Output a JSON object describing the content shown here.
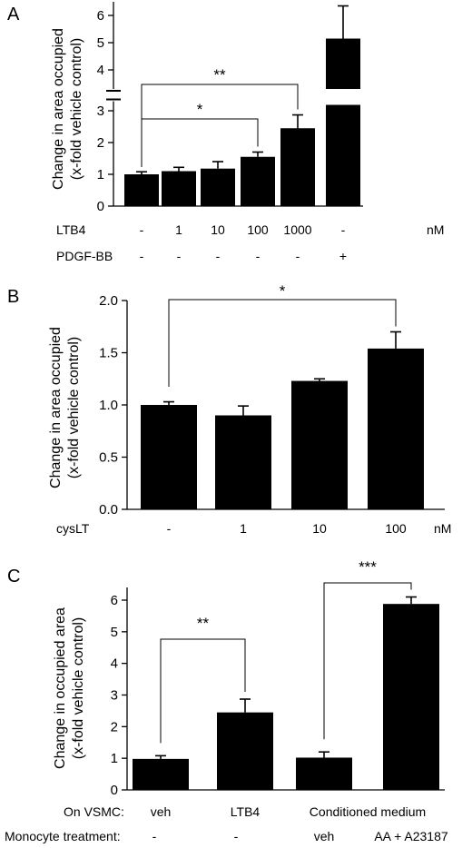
{
  "chart_data": [
    {
      "panel_label": "A",
      "type": "bar",
      "ylabel": "Change in area occupied",
      "ylabel_line2": "(x-fold vehicle control)",
      "axis_break": {
        "lower_max": 3.3,
        "upper_min": 3.3,
        "upper_max": 6.5
      },
      "yticks_lower": [
        0,
        1,
        2,
        3
      ],
      "yticks_upper": [
        4,
        5,
        6
      ],
      "values": [
        1.0,
        1.1,
        1.18,
        1.55,
        2.45,
        5.15
      ],
      "errors": [
        0.08,
        0.12,
        0.22,
        0.15,
        0.42,
        1.2
      ],
      "row_labels": [
        "LTB4",
        "PDGF-BB"
      ],
      "rows": [
        [
          "-",
          "1",
          "10",
          "100",
          "1000",
          "-"
        ],
        [
          "-",
          "-",
          "-",
          "-",
          "-",
          "+"
        ]
      ],
      "unit": "nM",
      "significance": [
        {
          "from": 0,
          "to": 3,
          "label": "*"
        },
        {
          "from": 0,
          "to": 4,
          "label": "**"
        }
      ]
    },
    {
      "panel_label": "B",
      "type": "bar",
      "ylabel": "Change in area occupied",
      "ylabel_line2": "(x-fold vehicle control)",
      "ylim": [
        0,
        2.0
      ],
      "yticks": [
        "0.0",
        "0.5",
        "1.0",
        "1.5",
        "2.0"
      ],
      "values": [
        1.0,
        0.9,
        1.23,
        1.54
      ],
      "errors": [
        0.03,
        0.09,
        0.02,
        0.16
      ],
      "row_labels": [
        "cysLT"
      ],
      "rows": [
        [
          "-",
          "1",
          "10",
          "100"
        ]
      ],
      "unit": "nM",
      "significance": [
        {
          "from": 0,
          "to": 3,
          "label": "*"
        }
      ]
    },
    {
      "panel_label": "C",
      "type": "bar",
      "ylabel": "Change in occupied area",
      "ylabel_line2": "(x-fold vehicle control)",
      "ylim": [
        0,
        6
      ],
      "yticks": [
        "0",
        "1",
        "2",
        "3",
        "4",
        "5",
        "6"
      ],
      "values": [
        0.98,
        2.45,
        1.02,
        5.88
      ],
      "errors": [
        0.1,
        0.42,
        0.18,
        0.22
      ],
      "row_labels": [
        "On VSMC:",
        "Monocyte treatment:"
      ],
      "row1": [
        "veh",
        "LTB4",
        "Conditioned medium"
      ],
      "row2": [
        "-",
        "-",
        "veh",
        "AA + A23187"
      ],
      "significance": [
        {
          "from": 0,
          "to": 1,
          "label": "**"
        },
        {
          "from": 2,
          "to": 3,
          "label": "***"
        }
      ]
    }
  ]
}
